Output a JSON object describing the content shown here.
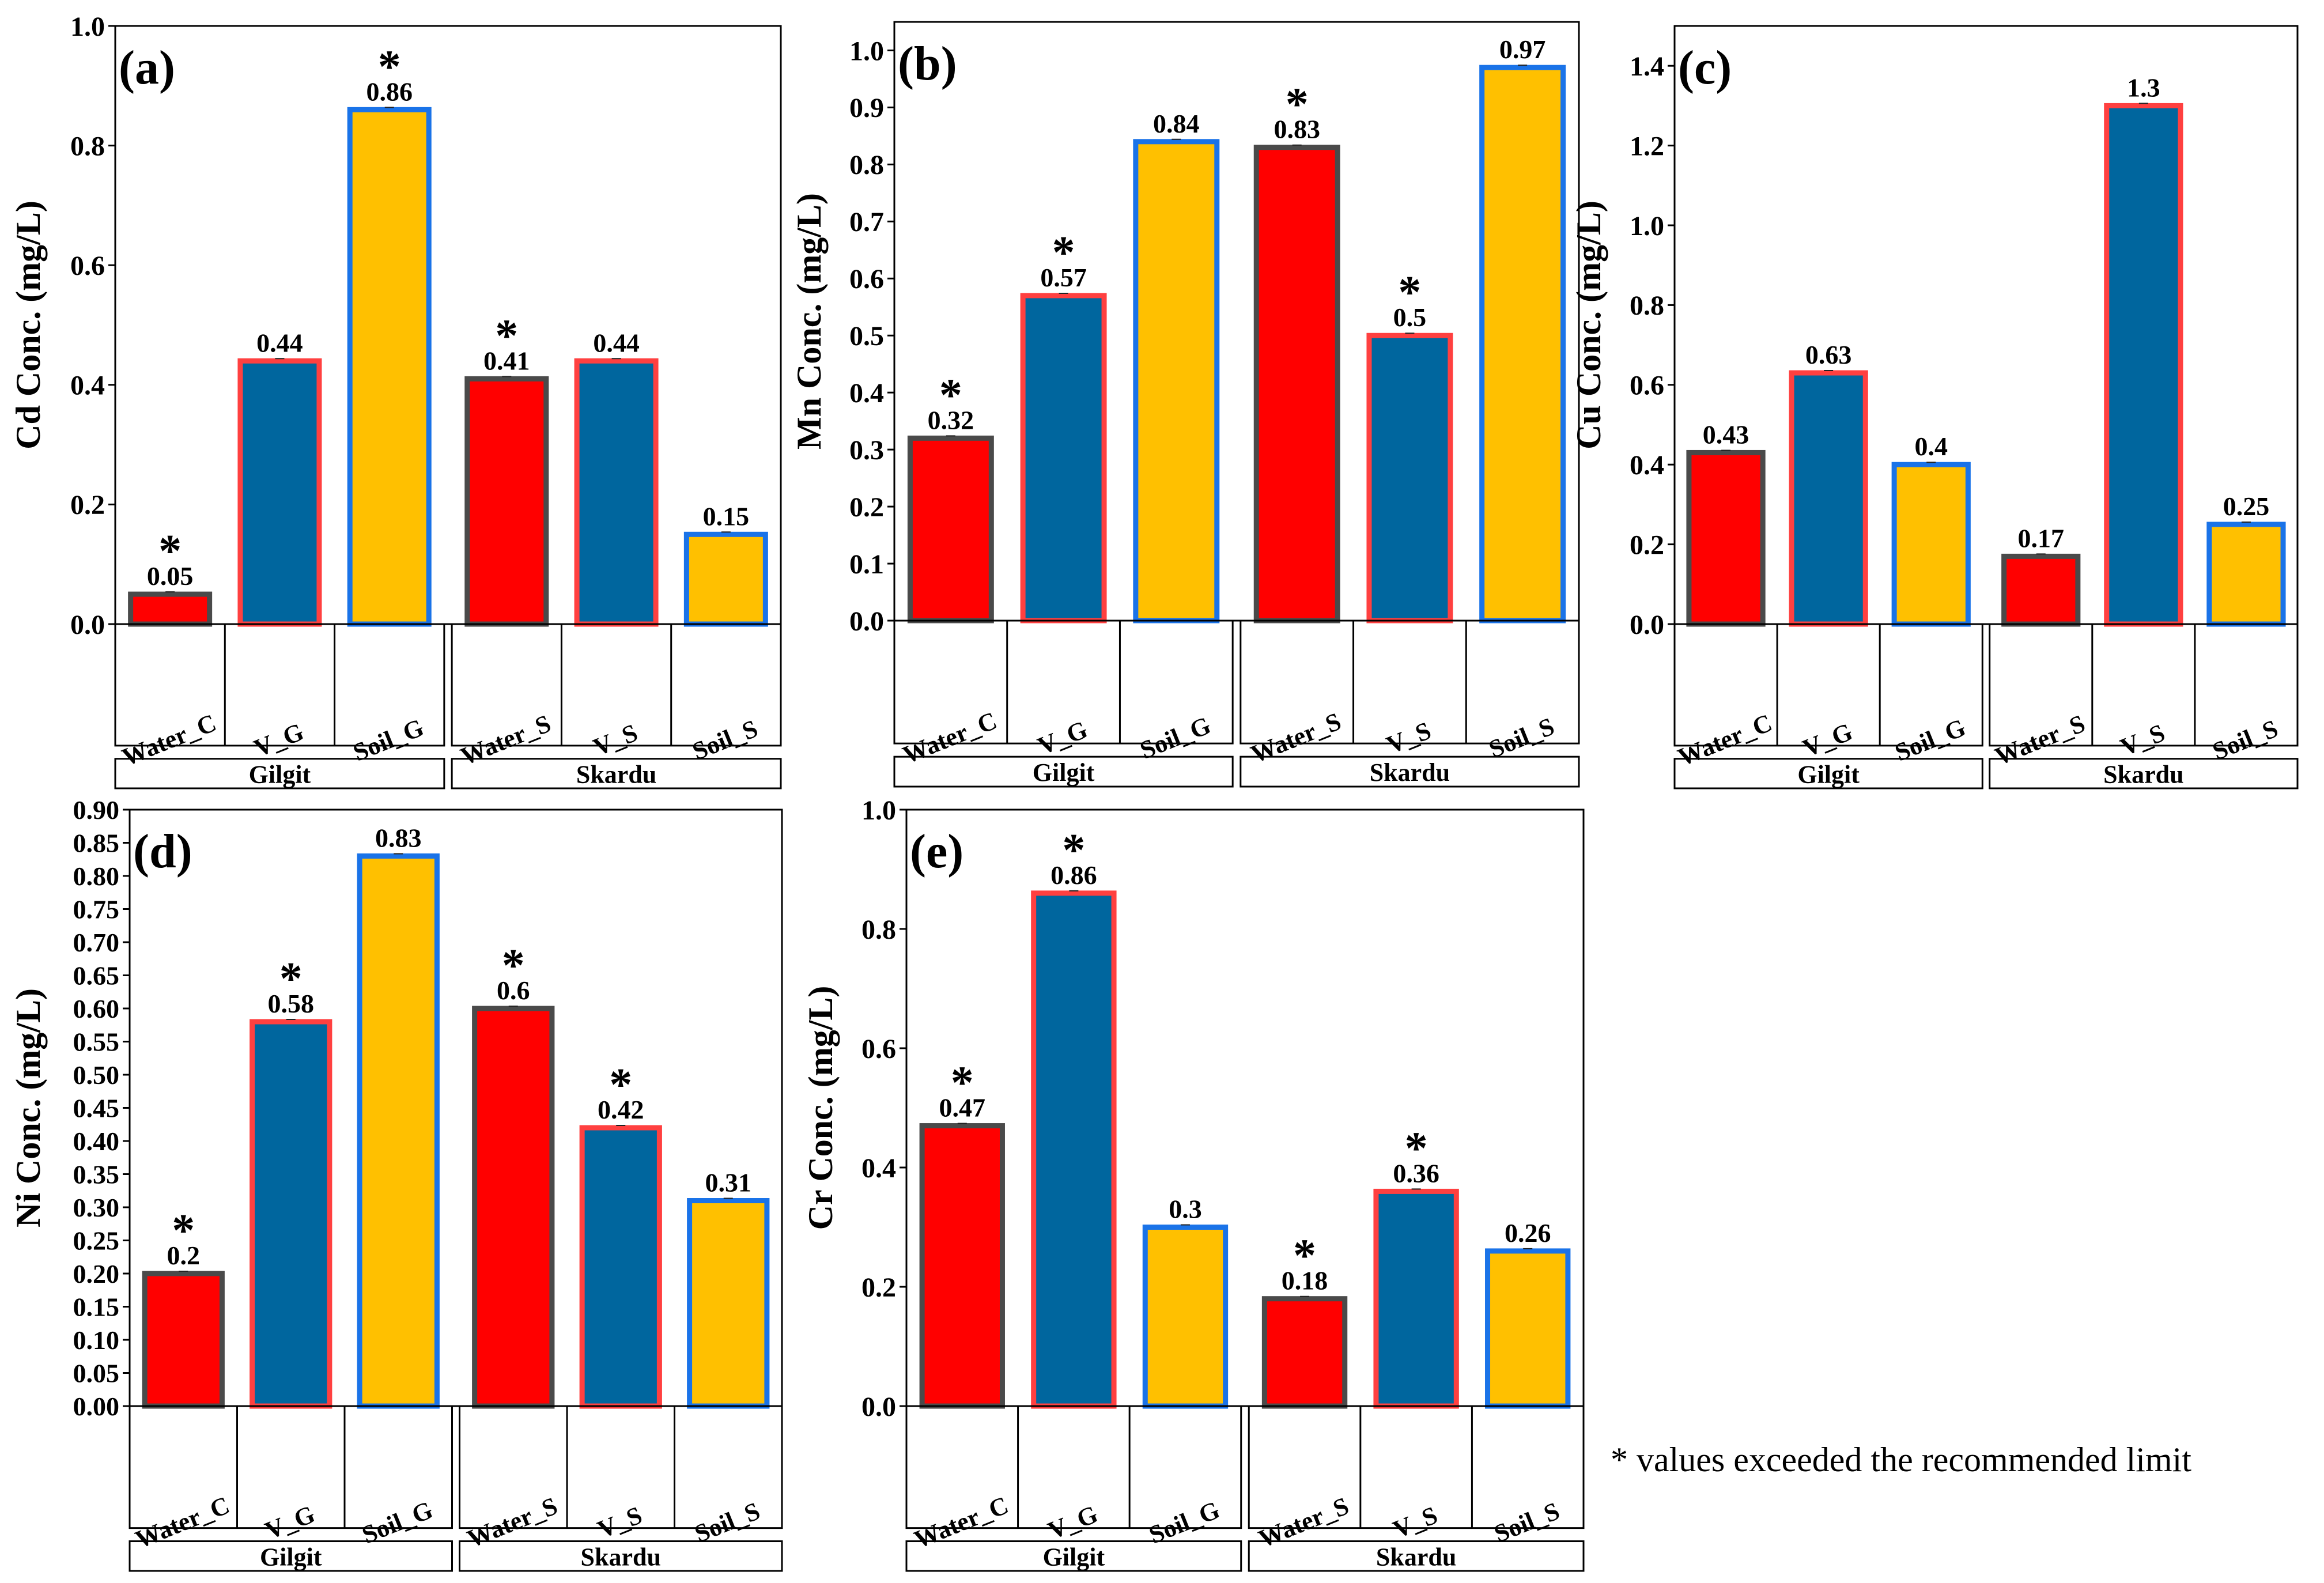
{
  "colors": {
    "red_fill": "#FF0000",
    "blue_fill": "#00669E",
    "yellow_fill": "#FFC000",
    "outline_grey": "#4A4A4A",
    "outline_red": "#FF4040",
    "outline_blue": "#1A73E8"
  },
  "footnote": "* values exceeded the recommended limit",
  "chart_data": [
    {
      "type": "bar",
      "panel_label": "(a)",
      "ylabel": "Cd Conc. (mg/L)",
      "ylim": [
        0,
        1.0
      ],
      "yticks": [
        "0.0",
        "0.2",
        "0.4",
        "0.6",
        "0.8",
        "1.0"
      ],
      "groups": [
        "Gilgit",
        "Skardu"
      ],
      "categories": [
        "Water_C",
        "V_G",
        "Soil_G",
        "Water_S",
        "V_S",
        "Soil_S"
      ],
      "values": [
        0.05,
        0.44,
        0.86,
        0.41,
        0.44,
        0.15
      ],
      "value_labels": [
        "0.05",
        "0.44",
        "0.86",
        "0.41",
        "0.44",
        "0.15"
      ],
      "exceeded": [
        true,
        false,
        true,
        true,
        false,
        false
      ]
    },
    {
      "type": "bar",
      "panel_label": "(b)",
      "ylabel": "Mn Conc. (mg/L)",
      "ylim": [
        0,
        1.05
      ],
      "yticks": [
        "0.0",
        "0.1",
        "0.2",
        "0.3",
        "0.4",
        "0.5",
        "0.6",
        "0.7",
        "0.8",
        "0.9",
        "1.0"
      ],
      "groups": [
        "Gilgit",
        "Skardu"
      ],
      "categories": [
        "Water_C",
        "V_G",
        "Soil_G",
        "Water_S",
        "V_S",
        "Soil_S"
      ],
      "values": [
        0.32,
        0.57,
        0.84,
        0.83,
        0.5,
        0.97
      ],
      "value_labels": [
        "0.32",
        "0.57",
        "0.84",
        "0.83",
        "0.5",
        "0.97"
      ],
      "exceeded": [
        true,
        true,
        false,
        true,
        true,
        false
      ]
    },
    {
      "type": "bar",
      "panel_label": "(c)",
      "ylabel": "Cu Conc. (mg/L)",
      "ylim": [
        0,
        1.5
      ],
      "yticks": [
        "0.0",
        "0.2",
        "0.4",
        "0.6",
        "0.8",
        "1.0",
        "1.2",
        "1.4"
      ],
      "groups": [
        "Gilgit",
        "Skardu"
      ],
      "categories": [
        "Water_C",
        "V_G",
        "Soil_G",
        "Water_S",
        "V_S",
        "Soil_S"
      ],
      "values": [
        0.43,
        0.63,
        0.4,
        0.17,
        1.3,
        0.25
      ],
      "value_labels": [
        "0.43",
        "0.63",
        "0.4",
        "0.17",
        "1.3",
        "0.25"
      ],
      "exceeded": [
        false,
        false,
        false,
        false,
        false,
        false
      ]
    },
    {
      "type": "bar",
      "panel_label": "(d)",
      "ylabel": "Ni Conc. (mg/L)",
      "ylim": [
        0,
        0.9
      ],
      "yticks": [
        "0.00",
        "0.05",
        "0.10",
        "0.15",
        "0.20",
        "0.25",
        "0.30",
        "0.35",
        "0.40",
        "0.45",
        "0.50",
        "0.55",
        "0.60",
        "0.65",
        "0.70",
        "0.75",
        "0.80",
        "0.85",
        "0.90"
      ],
      "groups": [
        "Gilgit",
        "Skardu"
      ],
      "categories": [
        "Water_C",
        "V_G",
        "Soil_G",
        "Water_S",
        "V_S",
        "Soil_S"
      ],
      "values": [
        0.2,
        0.58,
        0.83,
        0.6,
        0.42,
        0.31
      ],
      "value_labels": [
        "0.2",
        "0.58",
        "0.83",
        "0.6",
        "0.42",
        "0.31"
      ],
      "exceeded": [
        true,
        true,
        false,
        true,
        true,
        false
      ]
    },
    {
      "type": "bar",
      "panel_label": "(e)",
      "ylabel": "Cr Conc. (mg/L)",
      "ylim": [
        0,
        1.0
      ],
      "yticks": [
        "0.0",
        "0.2",
        "0.4",
        "0.6",
        "0.8",
        "1.0"
      ],
      "groups": [
        "Gilgit",
        "Skardu"
      ],
      "categories": [
        "Water_C",
        "V_G",
        "Soil_G",
        "Water_S",
        "V_S",
        "Soil_S"
      ],
      "values": [
        0.47,
        0.86,
        0.3,
        0.18,
        0.36,
        0.26
      ],
      "value_labels": [
        "0.47",
        "0.86",
        "0.3",
        "0.18",
        "0.36",
        "0.26"
      ],
      "exceeded": [
        true,
        true,
        false,
        true,
        true,
        false
      ]
    }
  ]
}
